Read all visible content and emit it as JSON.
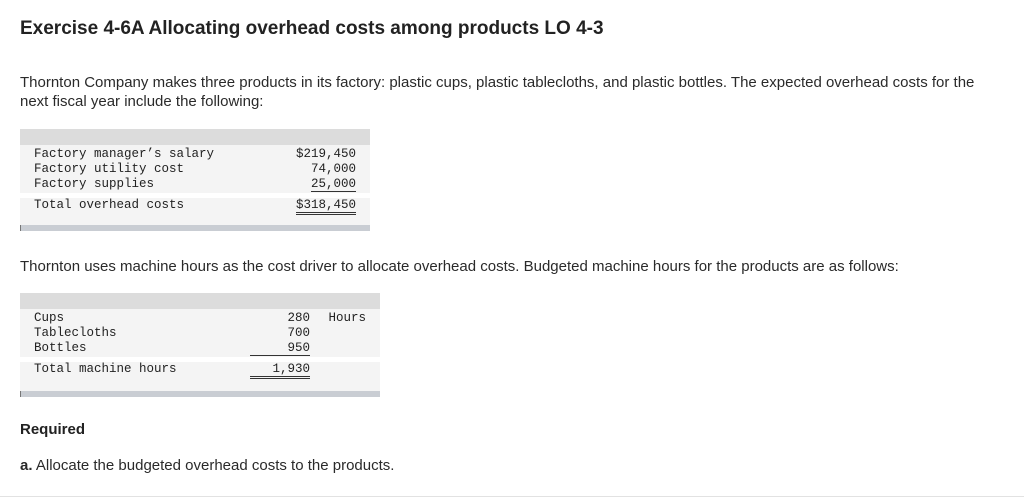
{
  "header": {
    "title": "Exercise 4-6A Allocating overhead costs among products LO 4-3"
  },
  "intro_text": "Thornton Company makes three products in its factory: plastic cups, plastic tablecloths, and plastic bottles. The expected overhead costs for the next fiscal year include the following:",
  "overhead_table": {
    "rows": [
      {
        "label": "Factory manager’s salary",
        "value": "$219,450"
      },
      {
        "label": "Factory utility cost",
        "value": "74,000"
      },
      {
        "label": "Factory supplies",
        "value": "25,000"
      }
    ],
    "total": {
      "label": "Total overhead costs",
      "value": "$318,450"
    }
  },
  "driver_text": "Thornton uses machine hours as the cost driver to allocate overhead costs. Budgeted machine hours for the products are as follows:",
  "hours_table": {
    "rows": [
      {
        "label": "Cups",
        "value": "280",
        "unit": "Hours"
      },
      {
        "label": "Tablecloths",
        "value": "700"
      },
      {
        "label": "Bottles",
        "value": "950"
      }
    ],
    "total": {
      "label": "Total machine hours",
      "value": "1,930"
    }
  },
  "required": {
    "heading": "Required",
    "part_a_prefix": "a.",
    "part_a_text": "Allocate the budgeted overhead costs to the products."
  }
}
